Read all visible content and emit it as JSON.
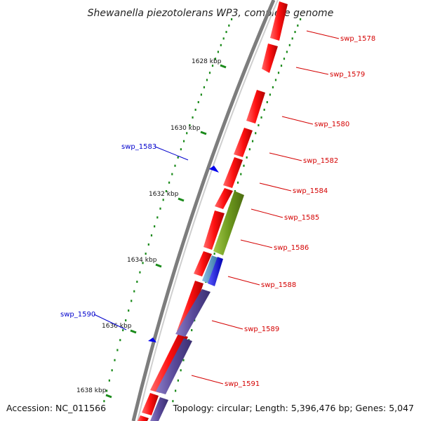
{
  "title": "Shewanella piezotolerans WP3, complete genome",
  "footer": {
    "accession": "Accession: NC_011566",
    "stats": "Topology: circular; Length: 5,396,476 bp; Genes: 5,047"
  },
  "colors": {
    "forward_gene": "#ff1010",
    "reverse_gene": "#0000ee",
    "olive_feature": "#6e9a1e",
    "slate_feature": "#5a4a9a",
    "steel_feature": "#4a88b8",
    "tick": "#1a8a1a",
    "backbone": "#8a8a8a"
  },
  "kbp_ticks": [
    {
      "label": "1628 kbp"
    },
    {
      "label": "1630 kbp"
    },
    {
      "label": "1632 kbp"
    },
    {
      "label": "1634 kbp"
    },
    {
      "label": "1636 kbp"
    },
    {
      "label": "1638 kbp"
    }
  ],
  "gene_labels_right": [
    {
      "name": "swp_1578"
    },
    {
      "name": "swp_1579"
    },
    {
      "name": "swp_1580"
    },
    {
      "name": "swp_1582"
    },
    {
      "name": "swp_1584"
    },
    {
      "name": "swp_1585"
    },
    {
      "name": "swp_1586"
    },
    {
      "name": "swp_1588"
    },
    {
      "name": "swp_1589"
    },
    {
      "name": "swp_1591"
    }
  ],
  "gene_labels_left": [
    {
      "name": "swp_1583"
    },
    {
      "name": "swp_1590"
    }
  ]
}
